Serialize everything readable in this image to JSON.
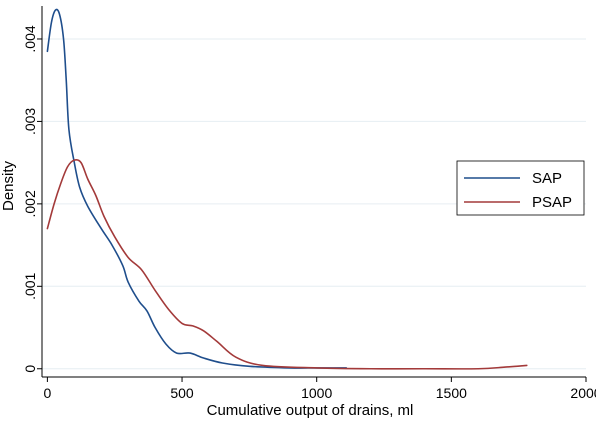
{
  "chart_data": {
    "type": "line",
    "title": "",
    "xlabel": "Cumulative output of drains, ml",
    "ylabel": "Density",
    "xlim": [
      -20,
      2000
    ],
    "ylim": [
      -0.0001,
      0.0044
    ],
    "x_ticks": [
      0,
      500,
      1000,
      1500,
      2000
    ],
    "x_tick_labels": [
      "0",
      "500",
      "1000",
      "1500",
      "2000"
    ],
    "y_ticks": [
      0,
      0.001,
      0.002,
      0.003,
      0.004
    ],
    "y_tick_labels": [
      "0",
      ".001",
      ".002",
      ".003",
      ".004"
    ],
    "grid": "horizontal",
    "legend_position": "right",
    "series": [
      {
        "name": "SAP",
        "color": "#1f4e8c",
        "points": [
          [
            0,
            0.00385
          ],
          [
            15,
            0.0042
          ],
          [
            30,
            0.00435
          ],
          [
            45,
            0.0043
          ],
          [
            60,
            0.004
          ],
          [
            70,
            0.0035
          ],
          [
            80,
            0.0029
          ],
          [
            100,
            0.0025
          ],
          [
            120,
            0.0022
          ],
          [
            150,
            0.00197
          ],
          [
            200,
            0.0017
          ],
          [
            240,
            0.0015
          ],
          [
            280,
            0.00125
          ],
          [
            300,
            0.00105
          ],
          [
            340,
            0.00082
          ],
          [
            370,
            0.0007
          ],
          [
            400,
            0.0005
          ],
          [
            440,
            0.0003
          ],
          [
            480,
            0.00019
          ],
          [
            530,
            0.00019
          ],
          [
            580,
            0.00013
          ],
          [
            650,
            7e-05
          ],
          [
            750,
            3e-05
          ],
          [
            900,
            1e-05
          ],
          [
            1000,
            1e-05
          ],
          [
            1110,
            1e-05
          ]
        ]
      },
      {
        "name": "PSAP",
        "color": "#a33a3a",
        "points": [
          [
            0,
            0.0017
          ],
          [
            25,
            0.002
          ],
          [
            50,
            0.00225
          ],
          [
            75,
            0.00245
          ],
          [
            100,
            0.00253
          ],
          [
            125,
            0.0025
          ],
          [
            150,
            0.0023
          ],
          [
            180,
            0.0021
          ],
          [
            210,
            0.00185
          ],
          [
            250,
            0.0016
          ],
          [
            300,
            0.00135
          ],
          [
            350,
            0.0012
          ],
          [
            400,
            0.00095
          ],
          [
            450,
            0.00072
          ],
          [
            500,
            0.00055
          ],
          [
            540,
            0.00052
          ],
          [
            580,
            0.00046
          ],
          [
            630,
            0.00033
          ],
          [
            700,
            0.00014
          ],
          [
            800,
            4e-05
          ],
          [
            1000,
            1e-05
          ],
          [
            1200,
            0.0
          ],
          [
            1400,
            0.0
          ],
          [
            1600,
            0.0
          ],
          [
            1700,
            2e-05
          ],
          [
            1780,
            4e-05
          ]
        ]
      }
    ]
  }
}
